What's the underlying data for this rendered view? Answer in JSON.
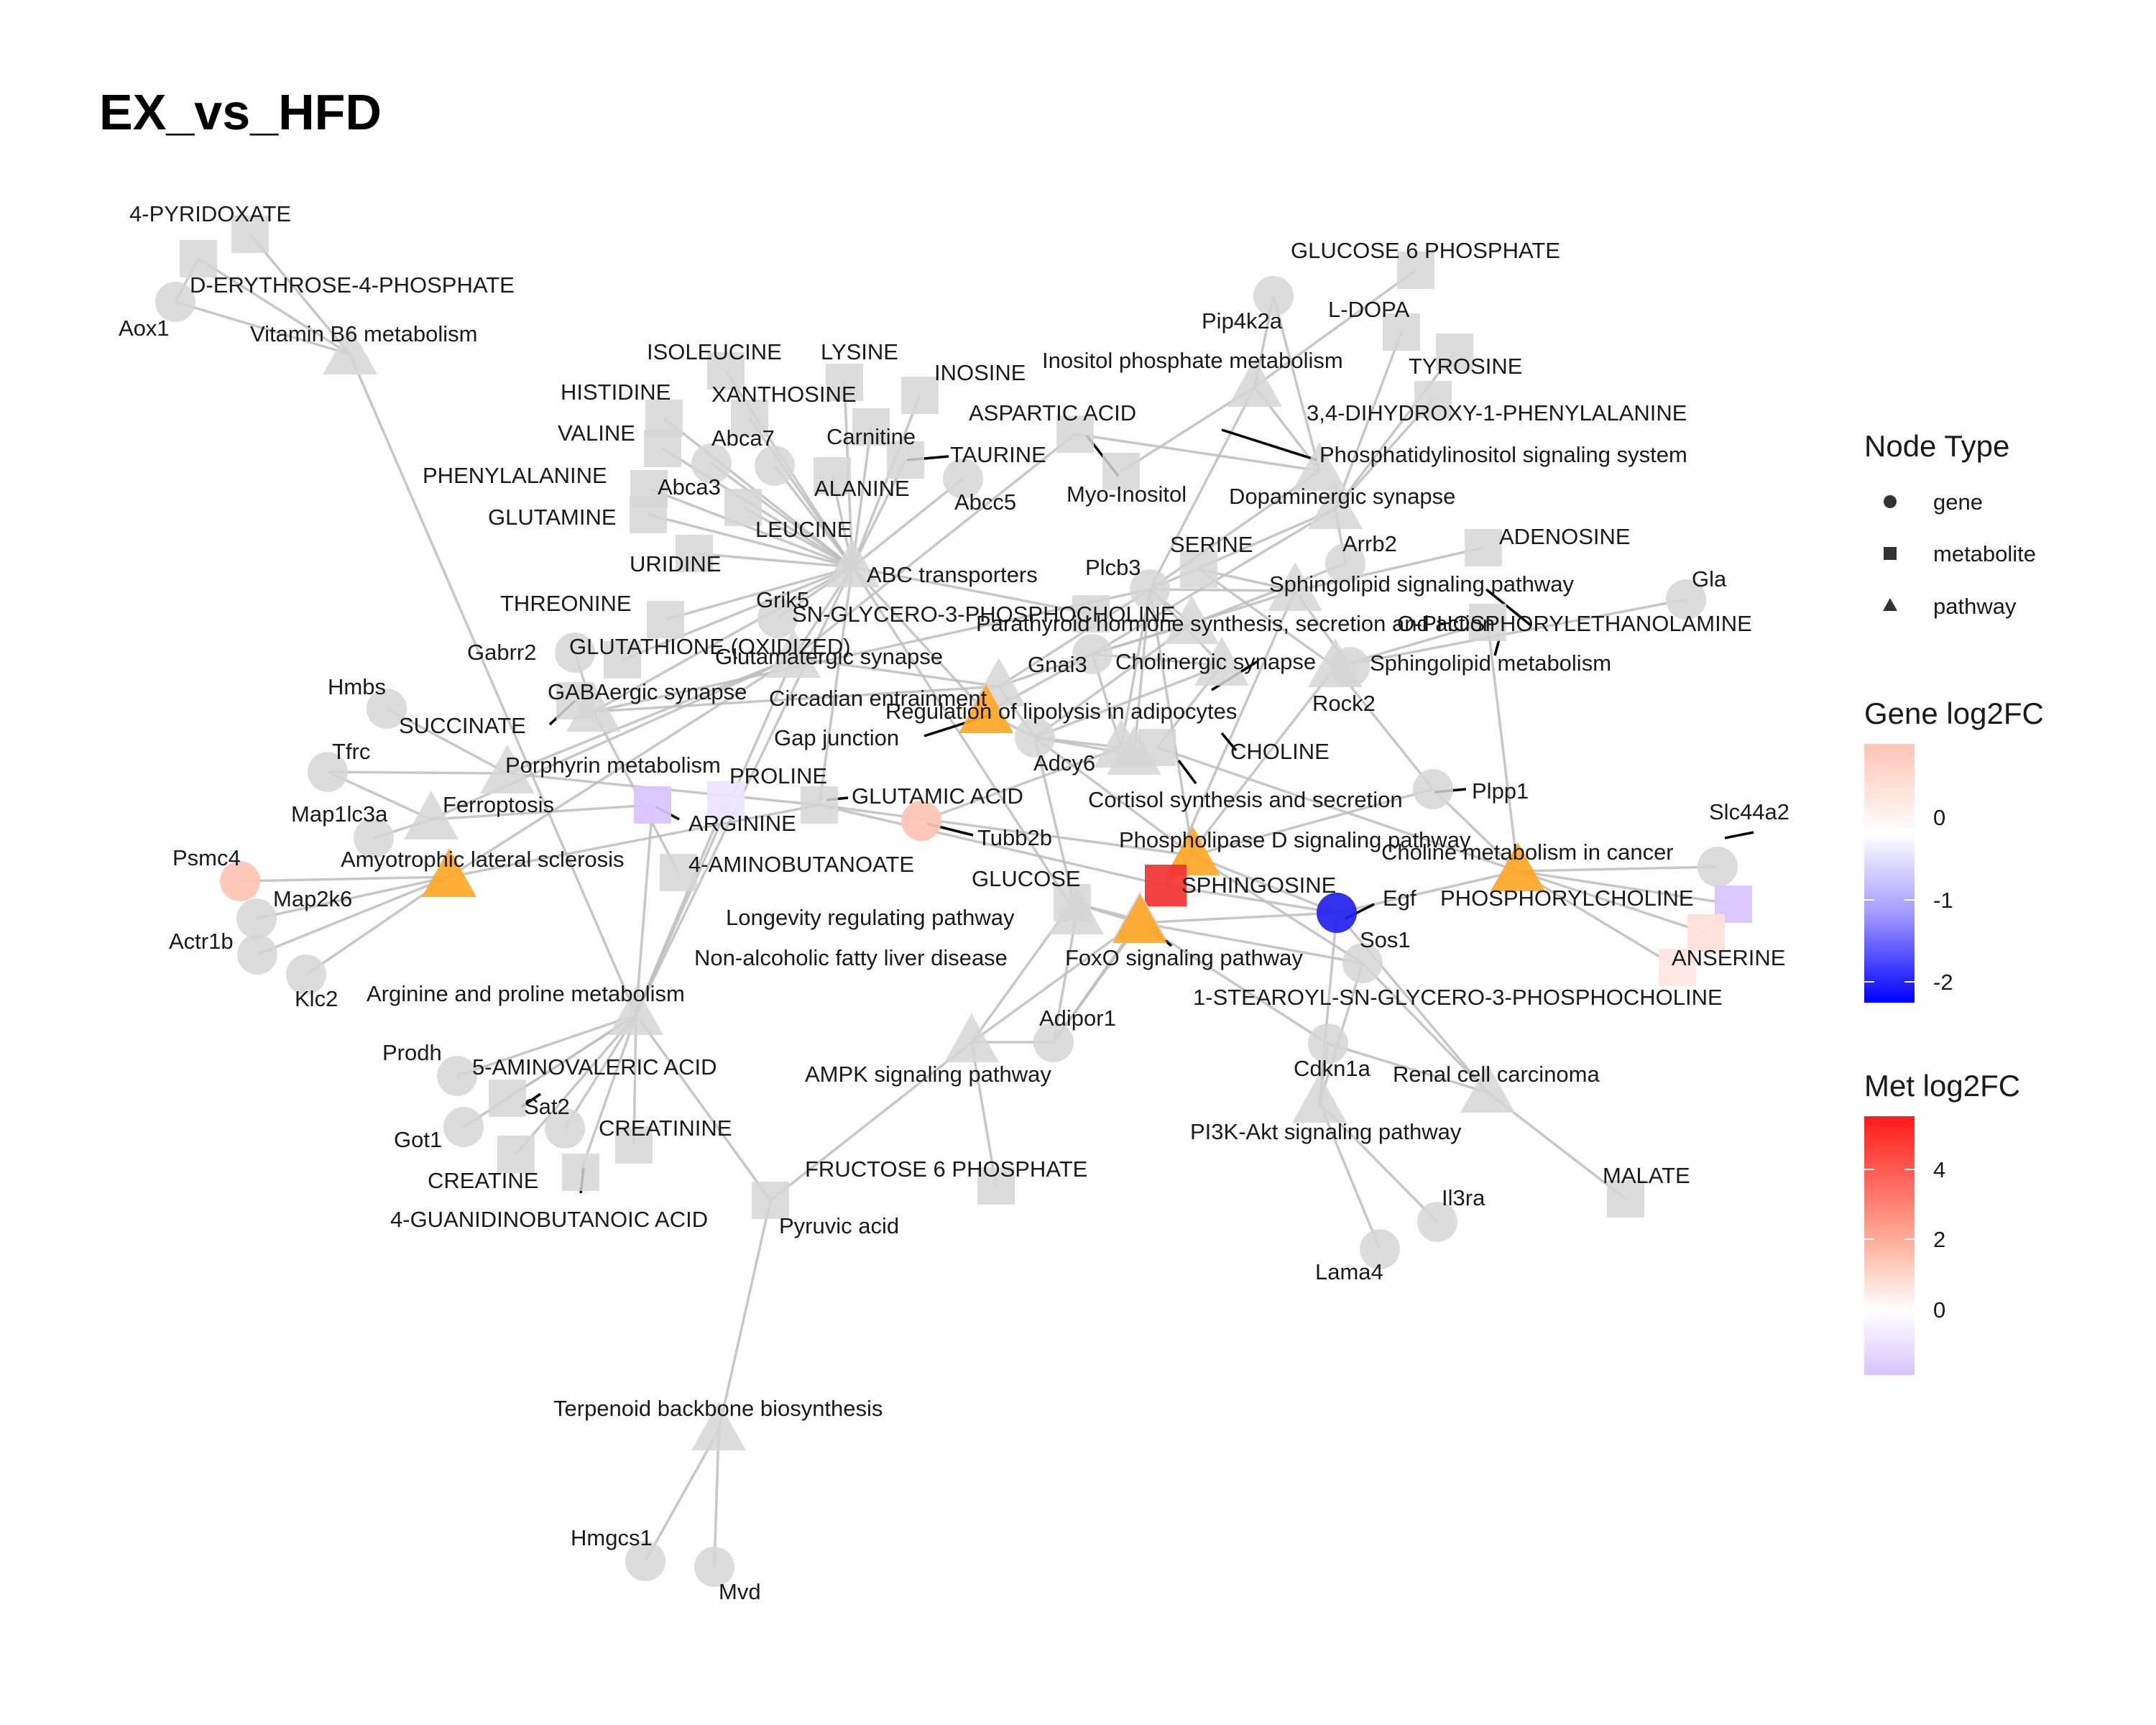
{
  "title": "EX_vs_HFD",
  "colors": {
    "neutral": "#d6d6d6",
    "edge": "#bdbdbd",
    "pathway_hit": "#ffa726",
    "gene_low": "#0000ff",
    "gene_mid": "#ffffff",
    "gene_high": "#ffc4b4",
    "met_low": "#d8c4ff",
    "met_mid": "#ffffff",
    "met_high": "#ff1a1a"
  },
  "legend": {
    "node_type_title": "Node Type",
    "node_types": [
      {
        "shape": "circle",
        "label": "gene"
      },
      {
        "shape": "square",
        "label": "metabolite"
      },
      {
        "shape": "triangle",
        "label": "pathway"
      }
    ],
    "gene_title": "Gene log2FC",
    "gene_ticks": [
      "0",
      "-1",
      "-2"
    ],
    "met_title": "Met log2FC",
    "met_ticks": [
      "4",
      "2",
      "0"
    ]
  },
  "nodes": [
    {
      "id": "4-PYRIDOXATE",
      "type": "metabolite"
    },
    {
      "id": "D-ERYTHROSE-4-PHOSPHATE",
      "type": "metabolite"
    },
    {
      "id": "Aox1",
      "type": "gene"
    },
    {
      "id": "Vitamin B6 metabolism",
      "type": "pathway"
    },
    {
      "id": "ISOLEUCINE",
      "type": "metabolite"
    },
    {
      "id": "LYSINE",
      "type": "metabolite"
    },
    {
      "id": "HISTIDINE",
      "type": "metabolite"
    },
    {
      "id": "XANTHOSINE",
      "type": "metabolite"
    },
    {
      "id": "INOSINE",
      "type": "metabolite"
    },
    {
      "id": "VALINE",
      "type": "metabolite"
    },
    {
      "id": "Abca7",
      "type": "gene"
    },
    {
      "id": "Carnitine",
      "type": "metabolite"
    },
    {
      "id": "TAURINE",
      "type": "metabolite"
    },
    {
      "id": "PHENYLALANINE",
      "type": "metabolite"
    },
    {
      "id": "Abca3",
      "type": "gene"
    },
    {
      "id": "ALANINE",
      "type": "metabolite"
    },
    {
      "id": "Abcc5",
      "type": "gene"
    },
    {
      "id": "GLUTAMINE",
      "type": "metabolite"
    },
    {
      "id": "LEUCINE",
      "type": "metabolite"
    },
    {
      "id": "URIDINE",
      "type": "metabolite"
    },
    {
      "id": "ABC transporters",
      "type": "pathway"
    },
    {
      "id": "THREONINE",
      "type": "metabolite"
    },
    {
      "id": "Grik5",
      "type": "gene"
    },
    {
      "id": "Gabrr2",
      "type": "gene"
    },
    {
      "id": "GLUTATHIONE (OXIDIZED)",
      "type": "metabolite"
    },
    {
      "id": "Glutamatergic synapse",
      "type": "pathway"
    },
    {
      "id": "GABAergic synapse",
      "type": "pathway"
    },
    {
      "id": "Hmbs",
      "type": "gene"
    },
    {
      "id": "SUCCINATE",
      "type": "metabolite"
    },
    {
      "id": "Tfrc",
      "type": "gene"
    },
    {
      "id": "Porphyrin metabolism",
      "type": "pathway"
    },
    {
      "id": "PROLINE",
      "type": "metabolite"
    },
    {
      "id": "Ferroptosis",
      "type": "pathway"
    },
    {
      "id": "Map1lc3a",
      "type": "gene"
    },
    {
      "id": "ARGININE",
      "type": "metabolite"
    },
    {
      "id": "GLUTAMIC ACID",
      "type": "metabolite"
    },
    {
      "id": "Tubb2b",
      "type": "gene"
    },
    {
      "id": "Psmc4",
      "type": "gene"
    },
    {
      "id": "Amyotrophic lateral sclerosis",
      "type": "pathway"
    },
    {
      "id": "4-AMINOBUTANOATE",
      "type": "metabolite"
    },
    {
      "id": "Map2k6",
      "type": "gene"
    },
    {
      "id": "Actr1b",
      "type": "gene"
    },
    {
      "id": "Klc2",
      "type": "gene"
    },
    {
      "id": "Arginine and proline metabolism",
      "type": "pathway"
    },
    {
      "id": "Prodh",
      "type": "gene"
    },
    {
      "id": "5-AMINOVALERIC ACID",
      "type": "metabolite"
    },
    {
      "id": "Sat2",
      "type": "gene"
    },
    {
      "id": "Got1",
      "type": "gene"
    },
    {
      "id": "CREATININE",
      "type": "metabolite"
    },
    {
      "id": "CREATINE",
      "type": "metabolite"
    },
    {
      "id": "4-GUANIDINOBUTANOIC ACID",
      "type": "metabolite"
    },
    {
      "id": "Pyruvic acid",
      "type": "metabolite"
    },
    {
      "id": "Terpenoid backbone biosynthesis",
      "type": "pathway"
    },
    {
      "id": "Hmgcs1",
      "type": "gene"
    },
    {
      "id": "Mvd",
      "type": "gene"
    },
    {
      "id": "GLUCOSE 6 PHOSPHATE",
      "type": "metabolite"
    },
    {
      "id": "Pip4k2a",
      "type": "gene"
    },
    {
      "id": "L-DOPA",
      "type": "metabolite"
    },
    {
      "id": "Inositol phosphate metabolism",
      "type": "pathway"
    },
    {
      "id": "TYROSINE",
      "type": "metabolite"
    },
    {
      "id": "ASPARTIC ACID",
      "type": "metabolite"
    },
    {
      "id": "3,4-DIHYDROXY-1-PHENYLALANINE",
      "type": "metabolite"
    },
    {
      "id": "Phosphatidylinositol signaling system",
      "type": "pathway"
    },
    {
      "id": "Myo-Inositol",
      "type": "metabolite"
    },
    {
      "id": "Dopaminergic synapse",
      "type": "pathway"
    },
    {
      "id": "SERINE",
      "type": "metabolite"
    },
    {
      "id": "Arrb2",
      "type": "gene"
    },
    {
      "id": "ADENOSINE",
      "type": "metabolite"
    },
    {
      "id": "Plcb3",
      "type": "gene"
    },
    {
      "id": "Sphingolipid signaling pathway",
      "type": "pathway"
    },
    {
      "id": "Gla",
      "type": "gene"
    },
    {
      "id": "SN-GLYCERO-3-PHOSPHOCHOLINE",
      "type": "metabolite"
    },
    {
      "id": "Parathyroid hormone synthesis, secretion and action",
      "type": "pathway"
    },
    {
      "id": "O-PHOSPHORYLETHANOLAMINE",
      "type": "metabolite"
    },
    {
      "id": "Gnai3",
      "type": "gene"
    },
    {
      "id": "Cholinergic synapse",
      "type": "pathway"
    },
    {
      "id": "Sphingolipid metabolism",
      "type": "pathway"
    },
    {
      "id": "Circadian entrainment",
      "type": "pathway"
    },
    {
      "id": "Rock2",
      "type": "gene"
    },
    {
      "id": "Regulation of lipolysis in adipocytes",
      "type": "pathway"
    },
    {
      "id": "Gap junction",
      "type": "pathway"
    },
    {
      "id": "Adcy6",
      "type": "gene"
    },
    {
      "id": "CHOLINE",
      "type": "metabolite"
    },
    {
      "id": "Cortisol synthesis and secretion",
      "type": "pathway"
    },
    {
      "id": "Plpp1",
      "type": "gene"
    },
    {
      "id": "Phospholipase D signaling pathway",
      "type": "pathway"
    },
    {
      "id": "Slc44a2",
      "type": "gene"
    },
    {
      "id": "Choline metabolism in cancer",
      "type": "pathway"
    },
    {
      "id": "SPHINGOSINE",
      "type": "metabolite"
    },
    {
      "id": "Egf",
      "type": "gene"
    },
    {
      "id": "PHOSPHORYLCHOLINE",
      "type": "metabolite"
    },
    {
      "id": "GLUCOSE",
      "type": "metabolite"
    },
    {
      "id": "Longevity regulating pathway",
      "type": "pathway"
    },
    {
      "id": "Sos1",
      "type": "gene"
    },
    {
      "id": "ANSERINE",
      "type": "metabolite"
    },
    {
      "id": "Non-alcoholic fatty liver disease",
      "type": "pathway"
    },
    {
      "id": "FoxO signaling pathway",
      "type": "pathway"
    },
    {
      "id": "1-STEAROYL-SN-GLYCERO-3-PHOSPHOCHOLINE",
      "type": "metabolite"
    },
    {
      "id": "Adipor1",
      "type": "gene"
    },
    {
      "id": "AMPK signaling pathway",
      "type": "pathway"
    },
    {
      "id": "Cdkn1a",
      "type": "gene"
    },
    {
      "id": "Renal cell carcinoma",
      "type": "pathway"
    },
    {
      "id": "PI3K-Akt signaling pathway",
      "type": "pathway"
    },
    {
      "id": "FRUCTOSE 6 PHOSPHATE",
      "type": "metabolite"
    },
    {
      "id": "MALATE",
      "type": "metabolite"
    },
    {
      "id": "Il3ra",
      "type": "gene"
    },
    {
      "id": "Lama4",
      "type": "gene"
    }
  ]
}
